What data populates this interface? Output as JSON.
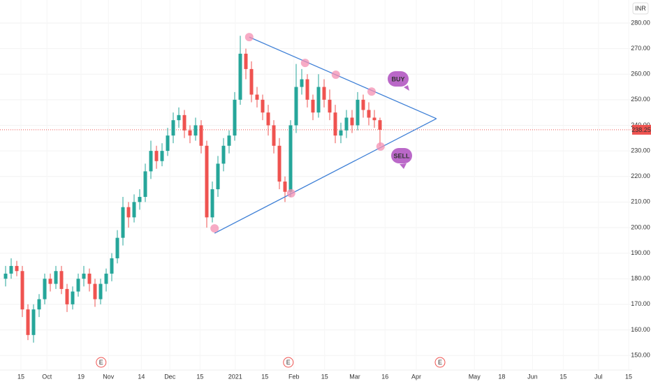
{
  "chart_data": {
    "type": "candlestick",
    "currency": "INR",
    "x": [
      1,
      2,
      3,
      4,
      5,
      6,
      7,
      8,
      9,
      10,
      11,
      12,
      13,
      14,
      15,
      16,
      17,
      18,
      19,
      20,
      21,
      22,
      23,
      24,
      25,
      26,
      27,
      28,
      29,
      30,
      31,
      32,
      33,
      34,
      35,
      36,
      37,
      38,
      39,
      40,
      41,
      42,
      43,
      44,
      45,
      46,
      47,
      48,
      49,
      50,
      51,
      52,
      53,
      54,
      55,
      56,
      57,
      58,
      59,
      60,
      61,
      62,
      63,
      64,
      65,
      66,
      67,
      68
    ],
    "open": [
      180,
      182,
      185,
      183,
      168,
      158,
      168,
      172,
      180,
      178,
      183,
      176,
      170,
      175,
      180,
      182,
      178,
      172,
      178,
      182,
      188,
      196,
      208,
      204,
      210,
      212,
      222,
      230,
      226,
      230,
      236,
      242,
      244,
      238,
      236,
      240,
      232,
      204,
      215,
      225,
      232,
      236,
      250,
      268,
      262,
      252,
      250,
      245,
      240,
      232,
      218,
      214,
      240,
      255,
      258,
      250,
      245,
      255,
      250,
      245,
      236,
      238,
      243,
      240,
      250,
      246,
      243,
      242
    ],
    "high": [
      185,
      188,
      187,
      185,
      170,
      170,
      174,
      182,
      182,
      185,
      185,
      178,
      177,
      182,
      185,
      184,
      180,
      180,
      184,
      190,
      199,
      212,
      210,
      213,
      215,
      225,
      234,
      232,
      233,
      239,
      245,
      247,
      246,
      240,
      243,
      242,
      234,
      218,
      228,
      235,
      238,
      253,
      275,
      270,
      265,
      255,
      252,
      248,
      242,
      235,
      220,
      242,
      264,
      262,
      260,
      252,
      260,
      258,
      254,
      248,
      241,
      246,
      246,
      253,
      252,
      249,
      246,
      243
    ],
    "low": [
      177,
      180,
      181,
      165,
      156,
      155,
      165,
      170,
      175,
      176,
      174,
      167,
      168,
      173,
      177,
      175,
      169,
      170,
      175,
      179,
      186,
      193,
      200,
      202,
      207,
      210,
      219,
      223,
      224,
      228,
      233,
      239,
      235,
      233,
      234,
      229,
      200,
      202,
      212,
      222,
      229,
      234,
      248,
      258,
      249,
      247,
      242,
      236,
      229,
      215,
      210,
      212,
      237,
      252,
      247,
      242,
      243,
      247,
      242,
      233,
      233,
      235,
      237,
      238,
      243,
      240,
      239,
      232
    ],
    "close": [
      182,
      185,
      183,
      168,
      158,
      168,
      172,
      180,
      178,
      183,
      176,
      170,
      175,
      180,
      182,
      178,
      172,
      178,
      182,
      188,
      196,
      208,
      204,
      210,
      212,
      222,
      230,
      226,
      230,
      236,
      242,
      244,
      238,
      236,
      240,
      232,
      204,
      215,
      225,
      232,
      236,
      250,
      268,
      262,
      252,
      250,
      245,
      240,
      232,
      218,
      214,
      240,
      255,
      258,
      250,
      245,
      255,
      250,
      245,
      236,
      238,
      243,
      240,
      250,
      246,
      243,
      242,
      238.25
    ],
    "up_color": "#26a69a",
    "down_color": "#ef5350",
    "xlim": [
      0,
      113.125
    ],
    "xticks": [
      {
        "value": 3.75,
        "label": "15"
      },
      {
        "value": 8.4,
        "label": "Oct"
      },
      {
        "value": 14.5,
        "label": "19"
      },
      {
        "value": 19.4,
        "label": "Nov"
      },
      {
        "value": 25.3,
        "label": "14"
      },
      {
        "value": 30.4,
        "label": "Dec"
      },
      {
        "value": 35.8,
        "label": "15"
      },
      {
        "value": 42.1,
        "label": "2021"
      },
      {
        "value": 47.4,
        "label": "15"
      },
      {
        "value": 52.6,
        "label": "Feb"
      },
      {
        "value": 58.1,
        "label": "15"
      },
      {
        "value": 63.5,
        "label": "Mar"
      },
      {
        "value": 68.9,
        "label": "16"
      },
      {
        "value": 74.5,
        "label": "Apr"
      },
      {
        "value": 84.9,
        "label": "May"
      },
      {
        "value": 89.8,
        "label": "18"
      },
      {
        "value": 95.3,
        "label": "Jun"
      },
      {
        "value": 100.8,
        "label": "15"
      },
      {
        "value": 107.1,
        "label": "Jul"
      },
      {
        "value": 112.5,
        "label": "15"
      }
    ],
    "ylim": [
      144.3,
      289
    ],
    "yticks": [
      {
        "value": 150,
        "label": "150.00"
      },
      {
        "value": 160,
        "label": "160.00"
      },
      {
        "value": 170,
        "label": "170.00"
      },
      {
        "value": 180,
        "label": "180.00"
      },
      {
        "value": 190,
        "label": "190.00"
      },
      {
        "value": 200,
        "label": "200.00"
      },
      {
        "value": 210,
        "label": "210.00"
      },
      {
        "value": 220,
        "label": "220.00"
      },
      {
        "value": 230,
        "label": "230.00"
      },
      {
        "value": 240,
        "label": "240.00"
      },
      {
        "value": 250,
        "label": "250.00"
      },
      {
        "value": 260,
        "label": "260.00"
      },
      {
        "value": 270,
        "label": "270.00"
      },
      {
        "value": 280,
        "label": "280.00"
      }
    ],
    "grid": true,
    "last_price": 238.25,
    "last_price_color": "#ef5350",
    "trendlines": [
      {
        "x": [
          44.6,
          78.1
        ],
        "y": [
          274.5,
          242.6
        ],
        "color": "#3d7fd6"
      },
      {
        "x": [
          38.4,
          78.1
        ],
        "y": [
          197.8,
          242.6
        ],
        "color": "#3d7fd6"
      }
    ],
    "touch_points": {
      "x": [
        44.6,
        54.6,
        60.1,
        66.5,
        68.1,
        52.1,
        38.4
      ],
      "y": [
        274.5,
        264.4,
        259.8,
        253.2,
        231.7,
        213.4,
        199.7
      ],
      "color": "#f48fb1"
    },
    "annotations": [
      "BUY",
      "SELL"
    ],
    "annotation_color": "#ba68c8",
    "events": {
      "x": [
        18.1,
        51.6,
        78.75
      ],
      "labels": [
        "E",
        "E",
        "E"
      ]
    }
  }
}
